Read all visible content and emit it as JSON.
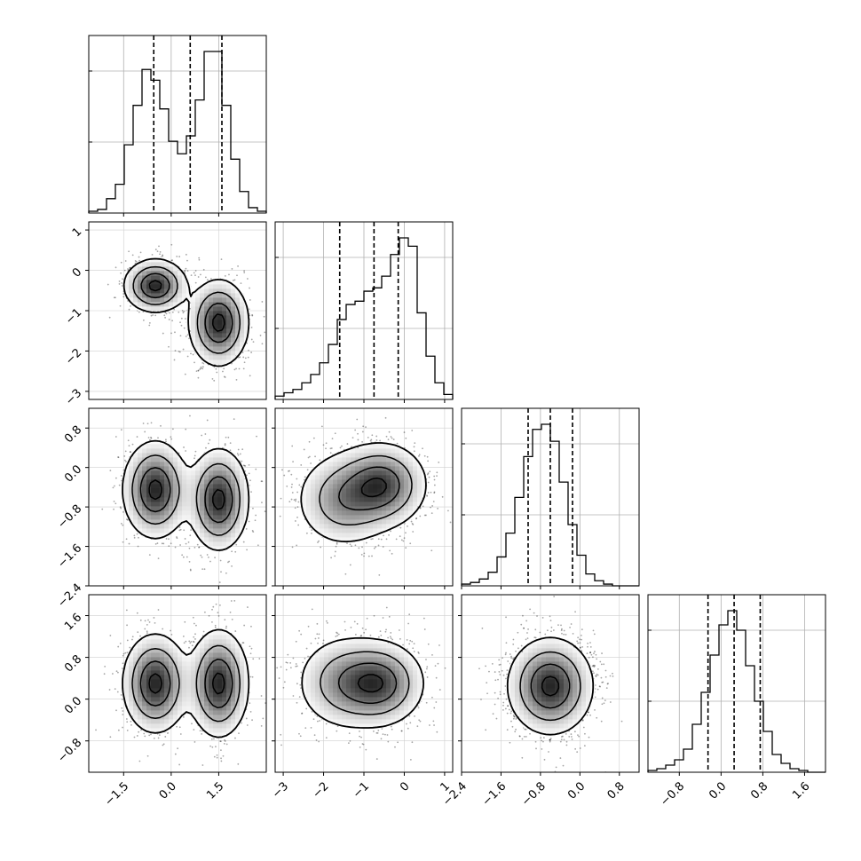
{
  "chart_data": {
    "type": "corner",
    "grid": true,
    "variables": [
      {
        "range": [
          -2.6,
          3.0
        ],
        "xticks": [
          -1.5,
          0.0,
          1.5
        ],
        "tick_labels": [
          "−1.5",
          "0.0",
          "1.5"
        ]
      },
      {
        "range": [
          -3.2,
          1.2
        ],
        "ticks": [
          -3,
          -2,
          -1,
          0,
          1
        ],
        "tick_labels": [
          "−3",
          "−2",
          "−1",
          "0",
          "1"
        ]
      },
      {
        "range": [
          -2.4,
          1.2
        ],
        "ticks": [
          -2.4,
          -1.6,
          -0.8,
          0.0,
          0.8
        ],
        "tick_labels": [
          "−2.4",
          "−1.6",
          "−0.8",
          "0.0",
          "0.8"
        ]
      },
      {
        "range": [
          -1.4,
          2.0
        ],
        "ticks": [
          -0.8,
          0.0,
          0.8,
          1.6
        ],
        "tick_labels": [
          "−0.8",
          "0.0",
          "0.8",
          "1.6"
        ]
      }
    ],
    "histograms": [
      {
        "variable": 0,
        "edges_start": -2.6,
        "bin_width": 0.28,
        "counts": [
          0.01,
          0.02,
          0.08,
          0.16,
          0.38,
          0.6,
          0.8,
          0.74,
          0.58,
          0.4,
          0.33,
          0.43,
          0.63,
          0.9,
          0.9,
          0.6,
          0.3,
          0.12,
          0.03,
          0.01
        ],
        "quantiles": [
          -0.55,
          0.6,
          1.6
        ]
      },
      {
        "variable": 1,
        "edges_start": -3.2,
        "bin_width": 0.22,
        "counts": [
          0.02,
          0.04,
          0.06,
          0.1,
          0.15,
          0.22,
          0.33,
          0.48,
          0.57,
          0.59,
          0.65,
          0.67,
          0.74,
          0.87,
          0.97,
          0.92,
          0.52,
          0.26,
          0.1,
          0.03
        ],
        "quantiles": [
          -1.6,
          -0.75,
          -0.15
        ]
      },
      {
        "variable": 2,
        "edges_start": -2.4,
        "bin_width": 0.18,
        "counts": [
          0.01,
          0.02,
          0.04,
          0.08,
          0.17,
          0.31,
          0.52,
          0.76,
          0.92,
          0.95,
          0.85,
          0.61,
          0.36,
          0.18,
          0.07,
          0.03,
          0.01,
          0.0,
          0.0,
          0.0
        ],
        "quantiles": [
          -1.05,
          -0.6,
          -0.15
        ]
      },
      {
        "variable": 3,
        "edges_start": -1.4,
        "bin_width": 0.17,
        "counts": [
          0.01,
          0.02,
          0.04,
          0.07,
          0.13,
          0.27,
          0.45,
          0.66,
          0.83,
          0.91,
          0.8,
          0.6,
          0.4,
          0.23,
          0.1,
          0.05,
          0.02,
          0.01,
          0.0,
          0.0
        ],
        "quantiles": [
          -0.25,
          0.25,
          0.75
        ]
      }
    ],
    "joint": [
      {
        "x": 0,
        "y": 1,
        "samples": 1400,
        "modes": [
          {
            "mean": [
              -0.5,
              -0.38
            ],
            "sd": [
              0.48,
              0.32
            ],
            "weight": 0.5
          },
          {
            "mean": [
              1.5,
              -1.3
            ],
            "sd": [
              0.46,
              0.52
            ],
            "weight": 0.5
          }
        ],
        "contour_levels": [
          0.12,
          0.35,
          0.65,
          0.92
        ]
      },
      {
        "x": 0,
        "y": 2,
        "samples": 1400,
        "modes": [
          {
            "mean": [
              -0.5,
              -0.45
            ],
            "sd": [
              0.5,
              0.48
            ],
            "weight": 0.5
          },
          {
            "mean": [
              1.5,
              -0.65
            ],
            "sd": [
              0.46,
              0.5
            ],
            "weight": 0.5
          }
        ],
        "contour_levels": [
          0.12,
          0.35,
          0.65,
          0.92
        ]
      },
      {
        "x": 1,
        "y": 2,
        "samples": 1400,
        "modes": [
          {
            "mean": [
              -0.55,
              -0.35
            ],
            "sd": [
              0.55,
              0.42
            ],
            "weight": 0.6
          },
          {
            "mean": [
              -1.5,
              -0.65
            ],
            "sd": [
              0.6,
              0.48
            ],
            "weight": 0.4
          }
        ],
        "contour_levels": [
          0.12,
          0.35,
          0.65,
          0.92
        ]
      },
      {
        "x": 0,
        "y": 3,
        "samples": 1400,
        "modes": [
          {
            "mean": [
              -0.5,
              0.3
            ],
            "sd": [
              0.5,
              0.46
            ],
            "weight": 0.5
          },
          {
            "mean": [
              1.5,
              0.3
            ],
            "sd": [
              0.46,
              0.5
            ],
            "weight": 0.5
          }
        ],
        "contour_levels": [
          0.12,
          0.35,
          0.65,
          0.92
        ]
      },
      {
        "x": 1,
        "y": 3,
        "samples": 1400,
        "modes": [
          {
            "mean": [
              -0.6,
              0.3
            ],
            "sd": [
              0.55,
              0.4
            ],
            "weight": 0.6
          },
          {
            "mean": [
              -1.5,
              0.32
            ],
            "sd": [
              0.6,
              0.45
            ],
            "weight": 0.4
          }
        ],
        "contour_levels": [
          0.12,
          0.35,
          0.65,
          0.92
        ]
      },
      {
        "x": 2,
        "y": 3,
        "samples": 1400,
        "modes": [
          {
            "mean": [
              -0.6,
              0.25
            ],
            "sd": [
              0.42,
              0.45
            ],
            "weight": 1.0
          }
        ],
        "contour_levels": [
          0.12,
          0.35,
          0.65,
          0.92
        ]
      }
    ]
  }
}
